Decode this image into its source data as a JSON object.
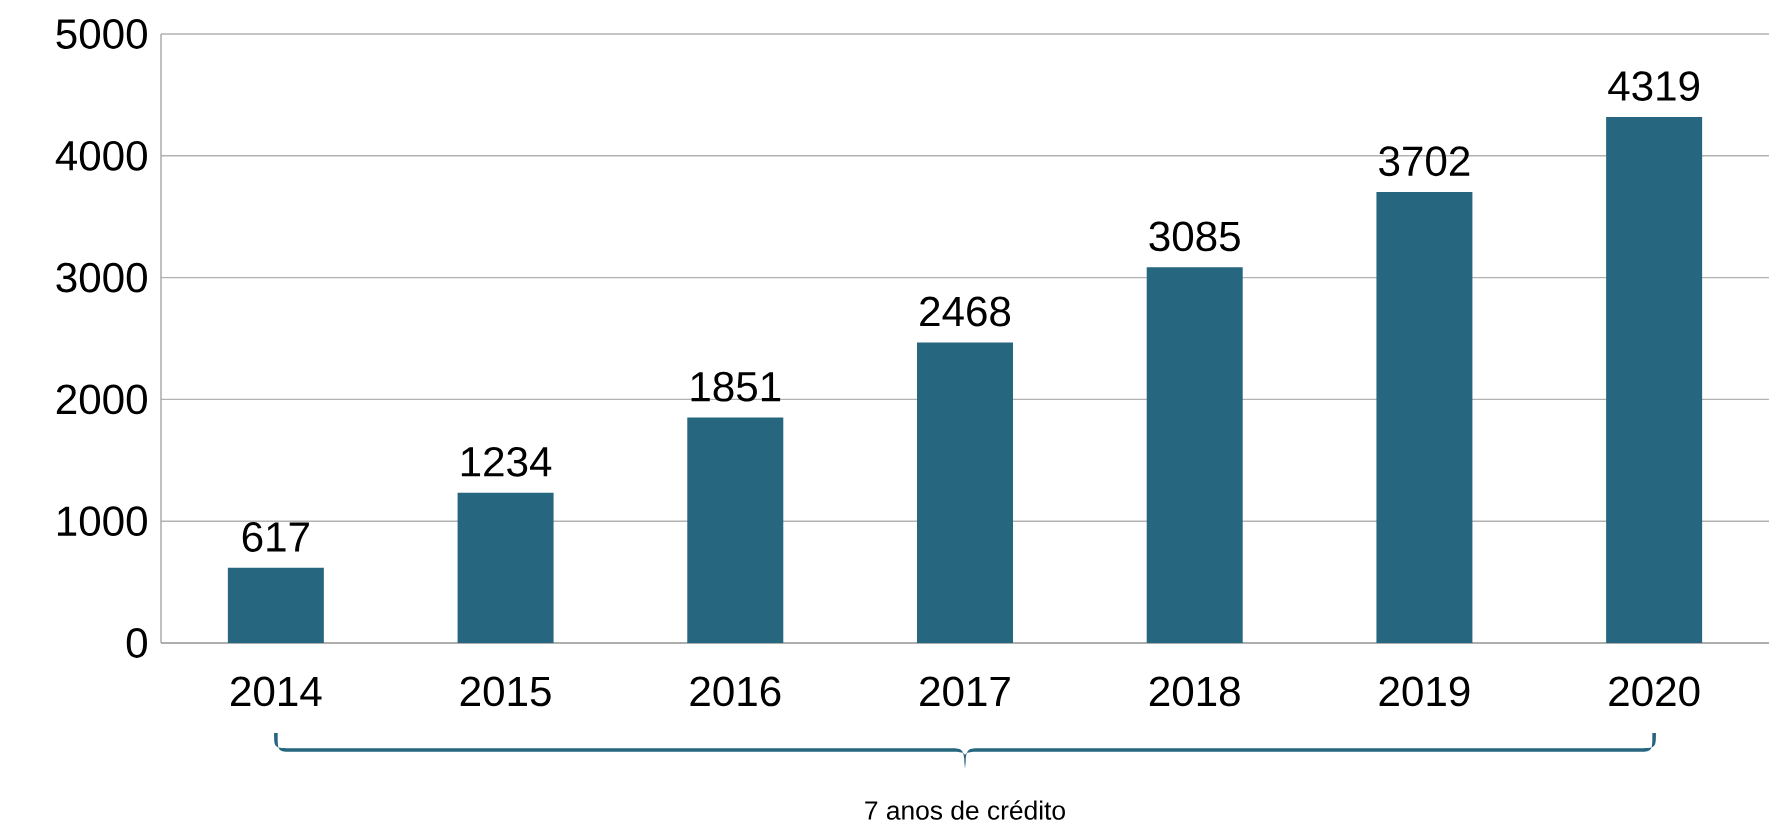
{
  "chart_data": {
    "type": "bar",
    "categories": [
      "2014",
      "2015",
      "2016",
      "2017",
      "2018",
      "2019",
      "2020"
    ],
    "values": [
      617,
      1234,
      1851,
      2468,
      3085,
      3702,
      4319
    ],
    "color": "#26667f",
    "ylim": [
      0,
      5000
    ],
    "yticks": [
      0,
      1000,
      2000,
      3000,
      4000,
      5000
    ],
    "grid": "y",
    "data_labels": true,
    "annotations": [
      "7 anos de crédito"
    ]
  }
}
